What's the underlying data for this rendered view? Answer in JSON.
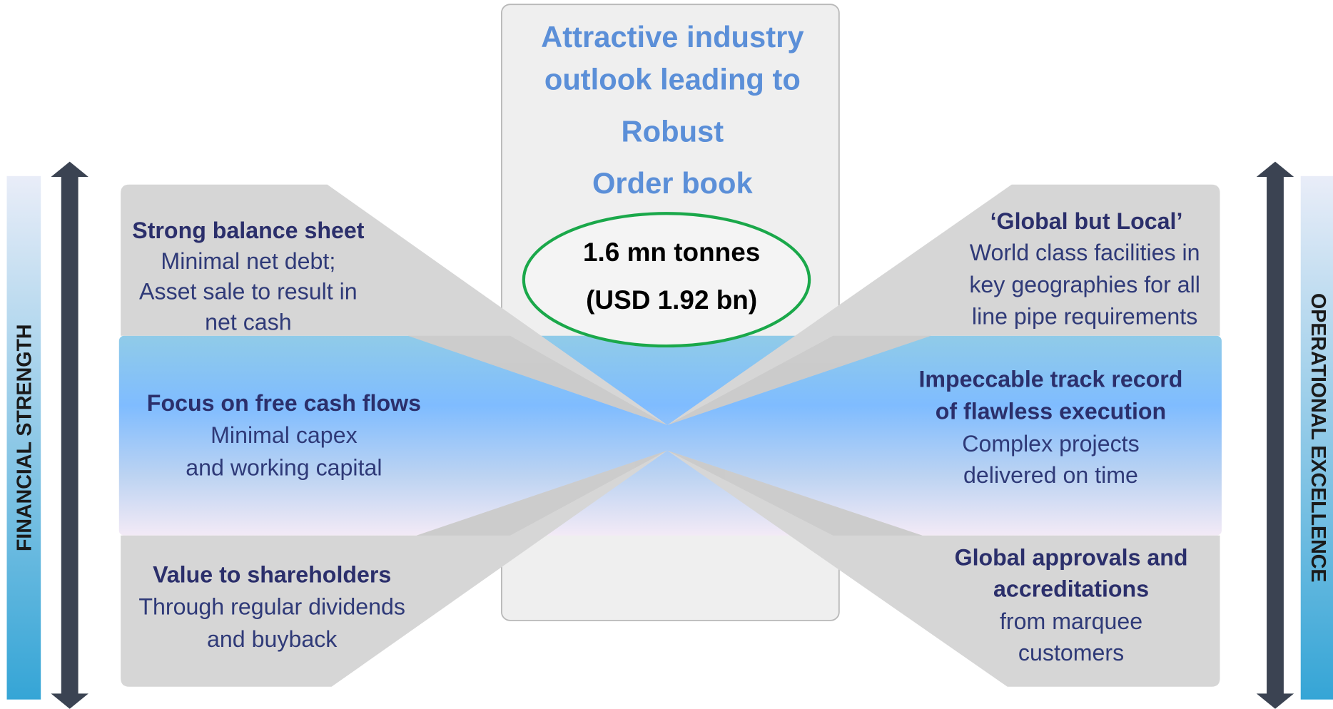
{
  "center": {
    "title": [
      "Attractive industry",
      "outlook leading to",
      "Robust",
      "Order book"
    ],
    "highlight": [
      "1.6 mn tonnes",
      "(USD 1.92 bn)"
    ]
  },
  "left_label": "FINANCIAL STRENGTH",
  "right_label": "OPERATIONAL EXCELLENCE",
  "left_panels": [
    {
      "heading": [
        "Strong balance sheet"
      ],
      "body": [
        "Minimal net debt;",
        "Asset sale to result in",
        "net cash"
      ]
    },
    {
      "heading": [
        "Focus on free cash flows"
      ],
      "body": [
        "Minimal capex",
        "and working capital"
      ]
    },
    {
      "heading": [
        "Value to shareholders"
      ],
      "body": [
        "Through regular dividends",
        "and buyback"
      ]
    }
  ],
  "right_panels": [
    {
      "heading": [
        "‘Global but Local’"
      ],
      "body": [
        "World class facilities in",
        "key geographies for all",
        "line pipe requirements"
      ]
    },
    {
      "heading": [
        "Impeccable track record",
        "of flawless execution"
      ],
      "body": [
        "Complex projects",
        "delivered on time"
      ]
    },
    {
      "heading": [
        "Global approvals and",
        "accreditations"
      ],
      "body": [
        "from marquee",
        "customers"
      ]
    }
  ]
}
